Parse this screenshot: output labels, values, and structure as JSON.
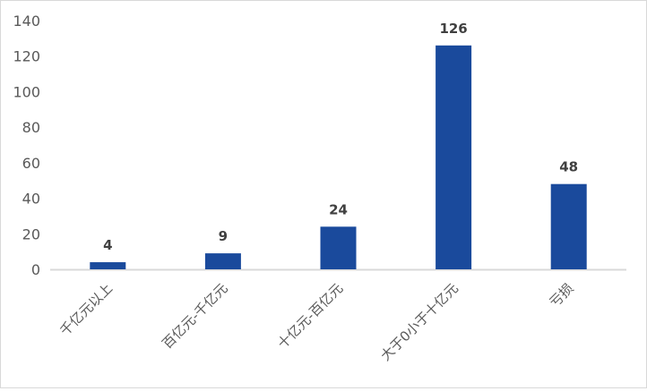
{
  "chart_data": {
    "type": "bar",
    "title": "",
    "xlabel": "",
    "ylabel": "",
    "categories": [
      "千亿元以上",
      "百亿元-千亿元",
      "十亿元-百亿元",
      "大于0小于十亿元",
      "亏损"
    ],
    "values": [
      4,
      9,
      24,
      126,
      48
    ],
    "data_labels": [
      "4",
      "9",
      "24",
      "126",
      "48"
    ],
    "ylim": [
      0,
      140
    ],
    "yticks": [
      "0",
      "20",
      "40",
      "60",
      "80",
      "100",
      "120",
      "140"
    ],
    "grid": false,
    "legend": "none",
    "bar_color": "#1a4a9c",
    "tick_label_color": "#595959",
    "data_label_color": "#404040",
    "axis_color": "#d9d9d9"
  }
}
